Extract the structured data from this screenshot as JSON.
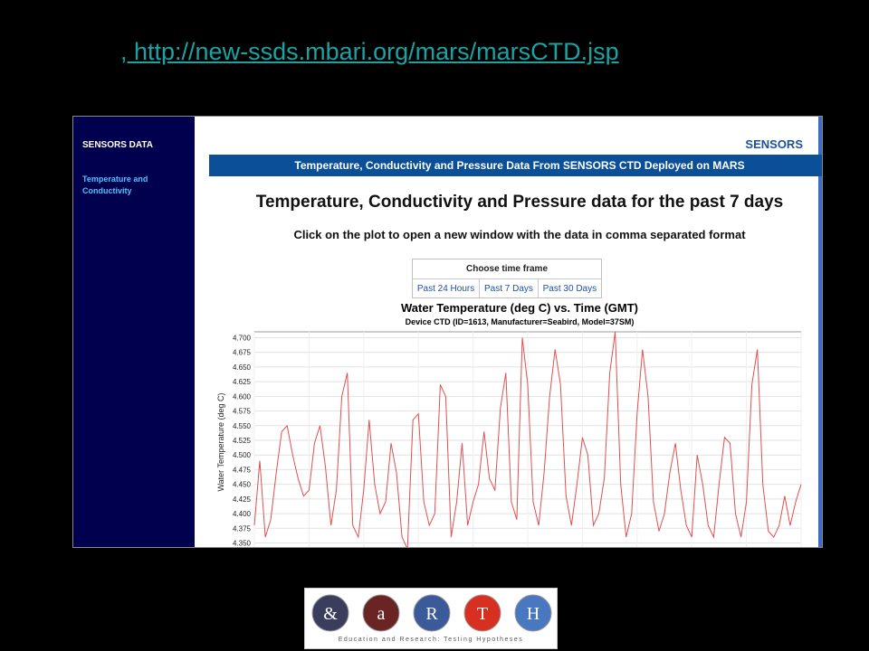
{
  "slide": {
    "url_link": ", http://new-ssds.mbari.org/mars/marsCTD.jsp"
  },
  "sidebar": {
    "title": "SENSORS DATA",
    "links": [
      {
        "label": "Temperature and Conductivity"
      }
    ]
  },
  "header": {
    "brand": "SENSORS",
    "banner": "Temperature, Conductivity and Pressure Data From SENSORS CTD Deployed on MARS"
  },
  "main": {
    "heading": "Temperature, Conductivity and Pressure data for the past 7 days",
    "instruction": "Click on the plot to open a new window with the data in comma separated format"
  },
  "timeframe": {
    "header": "Choose time frame",
    "options": [
      "Past 24 Hours",
      "Past 7 Days",
      "Past 30 Days"
    ]
  },
  "chart_data": {
    "type": "line",
    "title": "Water Temperature (deg C) vs. Time (GMT)",
    "subtitle": "Device CTD (ID=1613, Manufacturer=Seabird, Model=37SM)",
    "ylabel": "Water Temperature (deg C)",
    "xlabel": "",
    "ylim": [
      4.34,
      4.71
    ],
    "yticks": [
      "4.350",
      "4.375",
      "4.400",
      "4.425",
      "4.450",
      "4.475",
      "4.500",
      "4.525",
      "4.550",
      "4.575",
      "4.600",
      "4.625",
      "4.650",
      "4.675",
      "4.700"
    ],
    "grid": true,
    "color": "#e05050",
    "series": [
      {
        "x": [
          0,
          0.01,
          0.02,
          0.03,
          0.04,
          0.05,
          0.06,
          0.07,
          0.08,
          0.09,
          0.1,
          0.11,
          0.12,
          0.13,
          0.14,
          0.15,
          0.16,
          0.17,
          0.18,
          0.19,
          0.2,
          0.21,
          0.22,
          0.23,
          0.24,
          0.25,
          0.26,
          0.27,
          0.28,
          0.29,
          0.3,
          0.31,
          0.32,
          0.33,
          0.34,
          0.35,
          0.36,
          0.37,
          0.38,
          0.39,
          0.4,
          0.41,
          0.42,
          0.43,
          0.44,
          0.45,
          0.46,
          0.47,
          0.48,
          0.49,
          0.5,
          0.51,
          0.52,
          0.53,
          0.54,
          0.55,
          0.56,
          0.57,
          0.58,
          0.59,
          0.6,
          0.61,
          0.62,
          0.63,
          0.64,
          0.65,
          0.66,
          0.67,
          0.68,
          0.69,
          0.7,
          0.71,
          0.72,
          0.73,
          0.74,
          0.75,
          0.76,
          0.77,
          0.78,
          0.79,
          0.8,
          0.81,
          0.82,
          0.83,
          0.84,
          0.85,
          0.86,
          0.87,
          0.88,
          0.89,
          0.9,
          0.91,
          0.92,
          0.93,
          0.94,
          0.95,
          0.96,
          0.97,
          0.98,
          0.99,
          1.0
        ],
        "values": [
          4.38,
          4.49,
          4.36,
          4.39,
          4.47,
          4.54,
          4.55,
          4.5,
          4.46,
          4.43,
          4.44,
          4.52,
          4.55,
          4.48,
          4.38,
          4.44,
          4.6,
          4.64,
          4.38,
          4.36,
          4.44,
          4.56,
          4.45,
          4.4,
          4.42,
          4.52,
          4.47,
          4.36,
          4.34,
          4.56,
          4.57,
          4.42,
          4.38,
          4.4,
          4.62,
          4.6,
          4.36,
          4.42,
          4.52,
          4.38,
          4.42,
          4.45,
          4.54,
          4.46,
          4.44,
          4.58,
          4.64,
          4.42,
          4.39,
          4.7,
          4.62,
          4.42,
          4.38,
          4.47,
          4.6,
          4.68,
          4.62,
          4.43,
          4.38,
          4.45,
          4.53,
          4.5,
          4.38,
          4.4,
          4.46,
          4.64,
          4.71,
          4.45,
          4.36,
          4.4,
          4.57,
          4.68,
          4.6,
          4.42,
          4.37,
          4.4,
          4.47,
          4.52,
          4.44,
          4.38,
          4.36,
          4.5,
          4.45,
          4.38,
          4.36,
          4.45,
          4.53,
          4.52,
          4.4,
          4.36,
          4.42,
          4.62,
          4.68,
          4.45,
          4.37,
          4.36,
          4.38,
          4.43,
          4.38,
          4.42,
          4.45
        ]
      }
    ]
  },
  "logo": {
    "letters": [
      "&",
      "a",
      "R",
      "T",
      "H"
    ],
    "caption": "Education and Research: Testing Hypotheses"
  }
}
